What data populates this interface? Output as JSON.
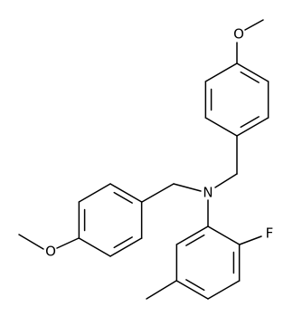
{
  "atoms": [
    {
      "label": "O"
    },
    {
      "label": "N"
    },
    {
      "label": "O"
    },
    {
      "label": "F"
    }
  ]
}
